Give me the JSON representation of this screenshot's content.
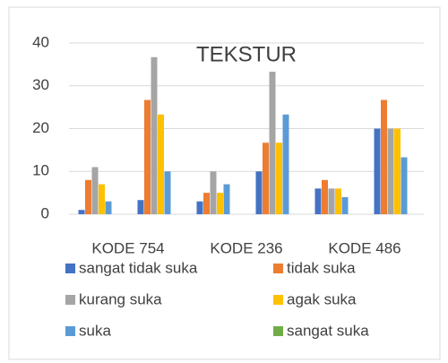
{
  "chart_data": {
    "type": "bar",
    "title": "TEKSTUR",
    "categories": [
      "KODE 754",
      null,
      "KODE 236",
      null,
      "KODE 486",
      null
    ],
    "series": [
      {
        "name": "sangat tidak suka",
        "color": "#4472c4",
        "values": [
          1,
          3.3,
          3,
          10,
          6,
          20
        ]
      },
      {
        "name": "tidak suka",
        "color": "#ed7d31",
        "values": [
          8,
          26.7,
          5,
          16.7,
          8,
          26.7
        ]
      },
      {
        "name": "kurang suka",
        "color": "#a5a5a5",
        "values": [
          11,
          36.7,
          10,
          33.3,
          6,
          20
        ]
      },
      {
        "name": "agak suka",
        "color": "#ffc000",
        "values": [
          7,
          23.3,
          5,
          16.7,
          6,
          20
        ]
      },
      {
        "name": "suka",
        "color": "#5b9bd5",
        "values": [
          3,
          10,
          7,
          23.3,
          4,
          13.3
        ]
      },
      {
        "name": "sangat suka",
        "color": "#70ad47",
        "values": [
          0,
          0,
          0,
          0,
          0,
          0
        ]
      }
    ],
    "ylim": [
      0,
      40
    ],
    "yticks": [
      0,
      10,
      20,
      30,
      40
    ],
    "grid": true,
    "legend": "bottom"
  }
}
